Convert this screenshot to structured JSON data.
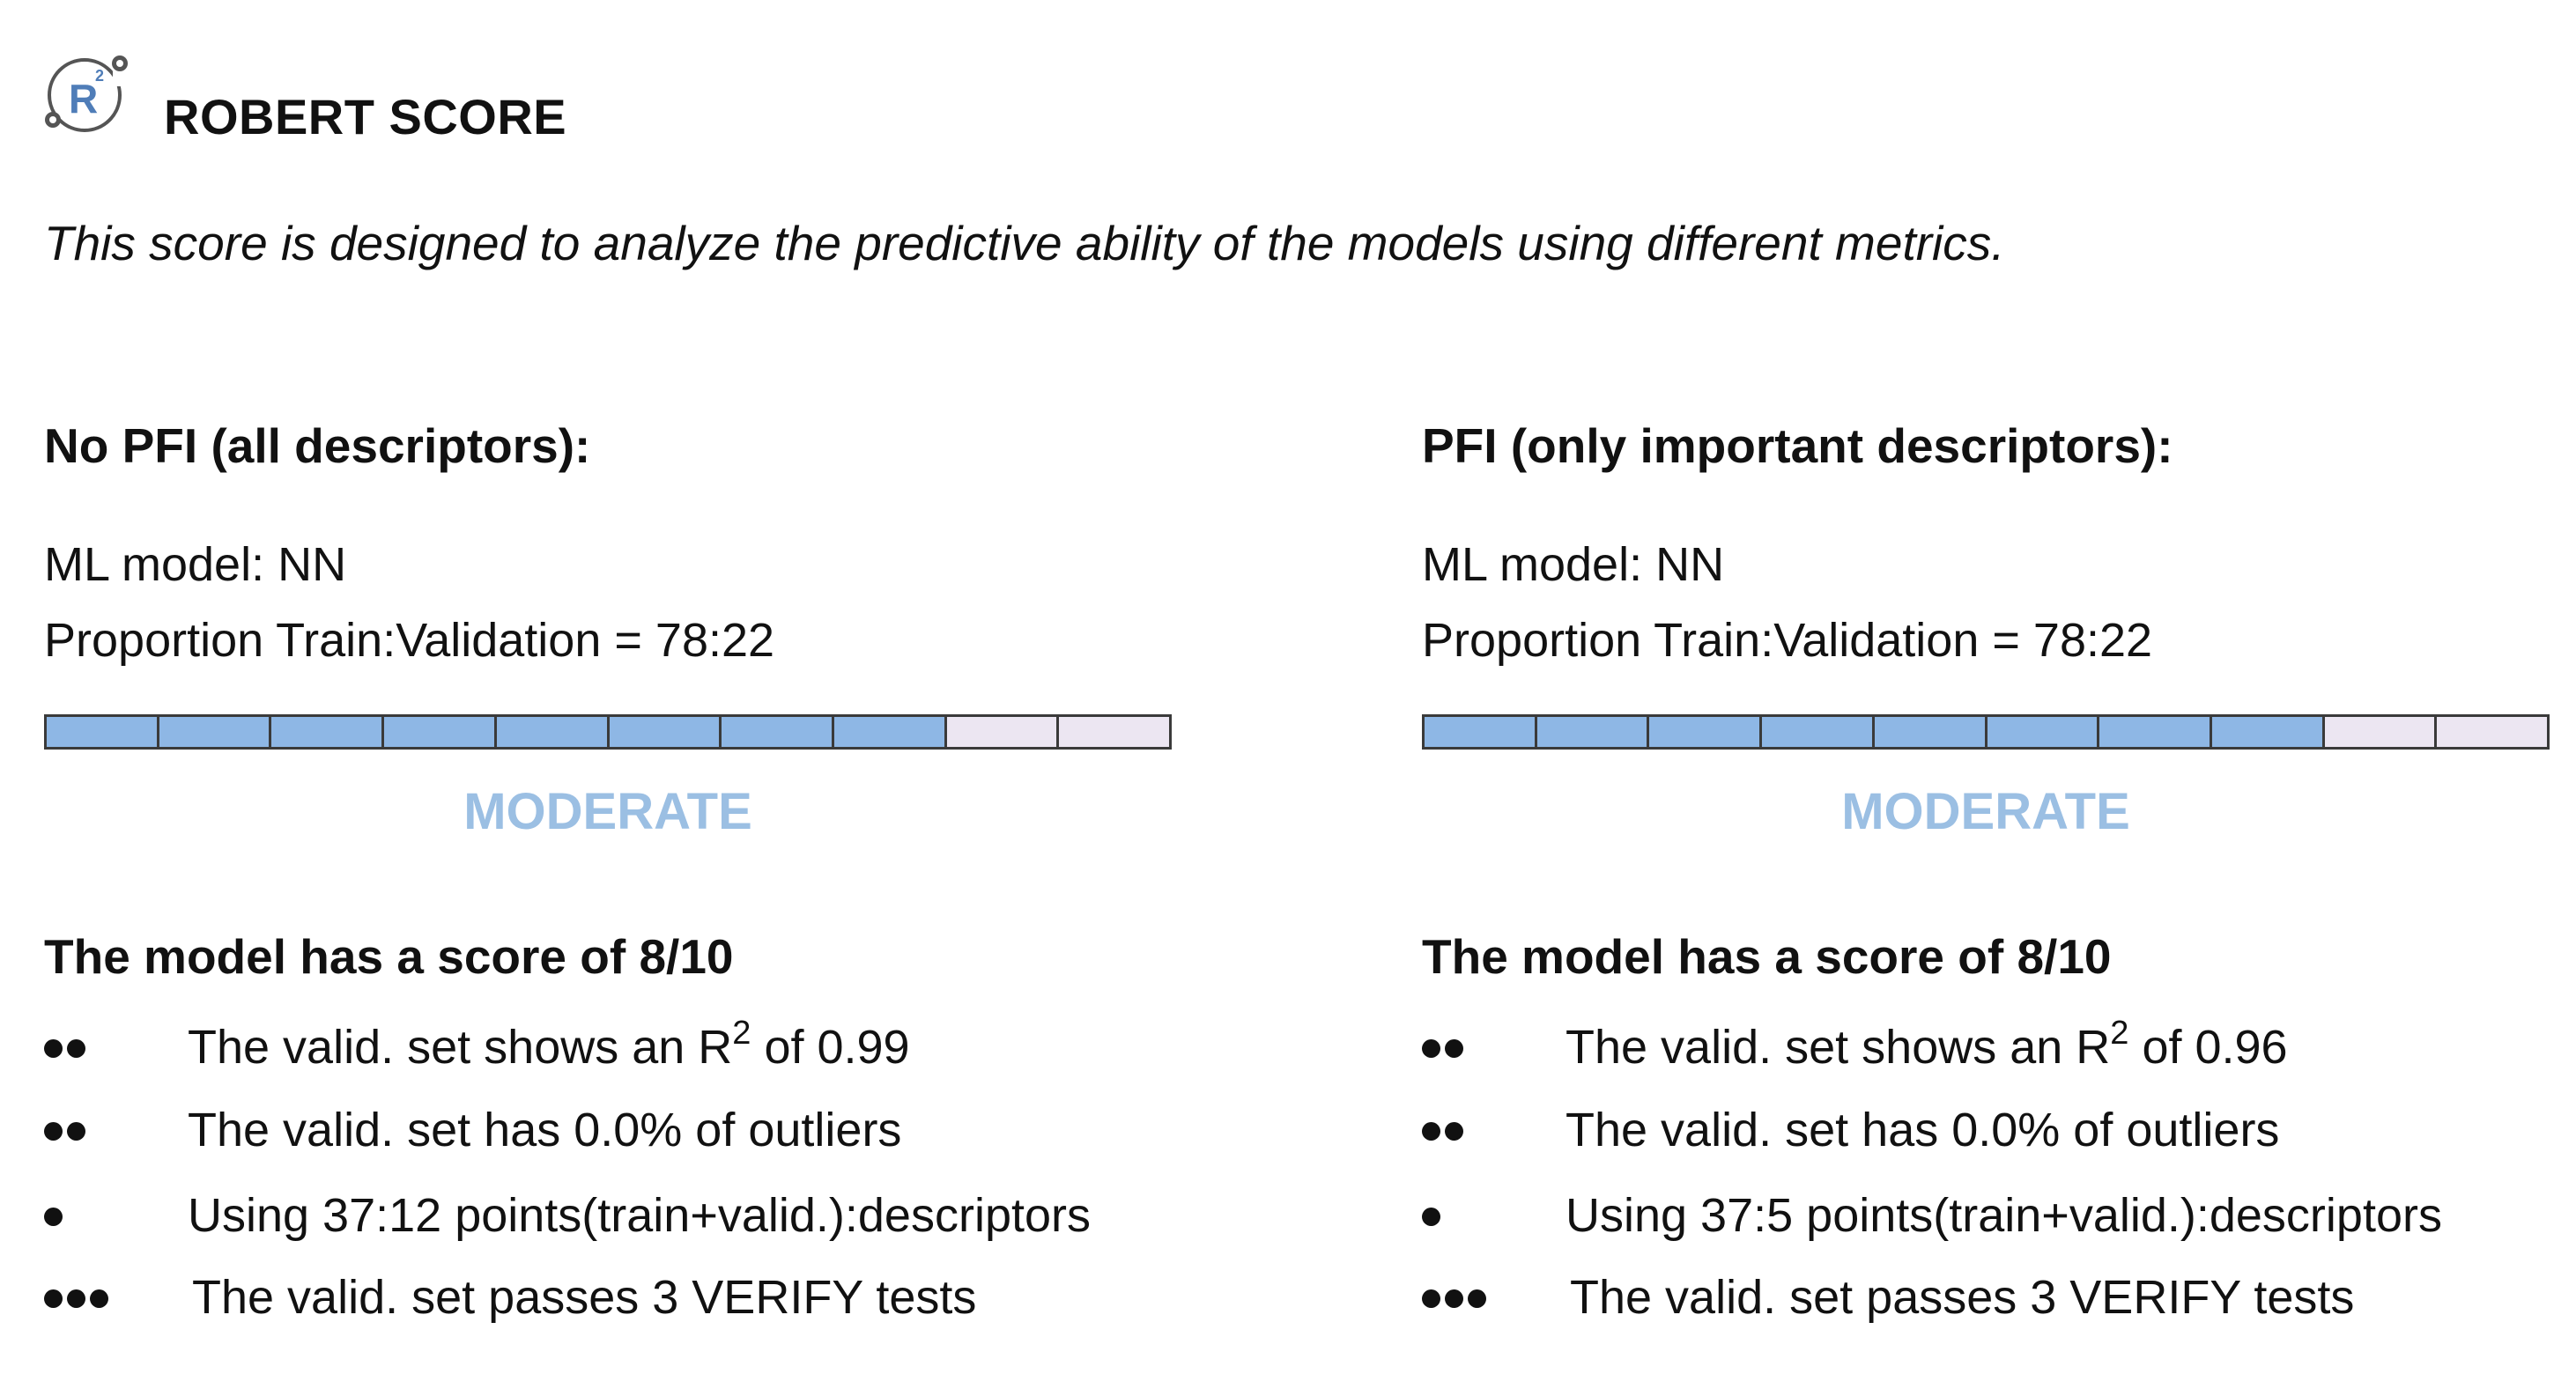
{
  "header": {
    "title": "ROBERT SCORE",
    "subtitle": "This score is designed to analyze the predictive ability of the models using different metrics."
  },
  "colors": {
    "bar_filled": "#8eb7e5",
    "bar_empty": "#ece6f2",
    "rating_text": "#9bbfe3"
  },
  "columns": [
    {
      "heading": "No PFI (all descriptors):",
      "ml_model": "ML model: NN",
      "proportion": "Proportion Train:Validation = 78:22",
      "score_value": 8,
      "score_max": 10,
      "rating": "MODERATE",
      "score_heading": "The model has a score of 8/10",
      "bullets": [
        {
          "dots": 2,
          "text_pre": "The valid. set shows an R",
          "sup": "2",
          "text_post": " of 0.99"
        },
        {
          "dots": 2,
          "text": "The valid. set has 0.0% of outliers"
        },
        {
          "dots": 1,
          "text": "Using 37:12 points(train+valid.):descriptors"
        },
        {
          "dots": 3,
          "text": "The valid. set passes 3 VERIFY tests"
        }
      ]
    },
    {
      "heading": "PFI (only important descriptors):",
      "ml_model": "ML model: NN",
      "proportion": "Proportion Train:Validation = 78:22",
      "score_value": 8,
      "score_max": 10,
      "rating": "MODERATE",
      "score_heading": "The model has a score of 8/10",
      "bullets": [
        {
          "dots": 2,
          "text_pre": "The valid. set shows an R",
          "sup": "2",
          "text_post": " of 0.96"
        },
        {
          "dots": 2,
          "text": "The valid. set has 0.0% of outliers"
        },
        {
          "dots": 1,
          "text": "Using 37:5 points(train+valid.):descriptors"
        },
        {
          "dots": 3,
          "text": "The valid. set passes 3 VERIFY tests"
        }
      ]
    }
  ]
}
